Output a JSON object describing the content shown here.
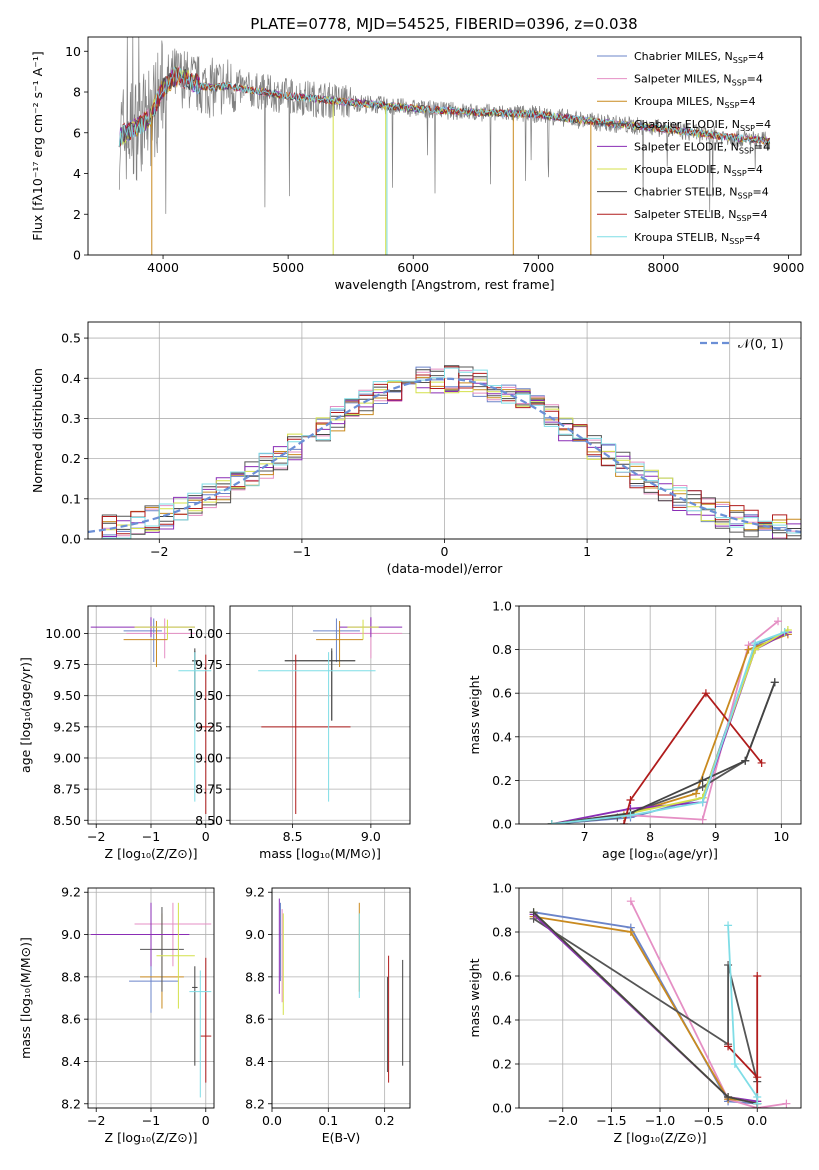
{
  "figure": {
    "title": "PLATE=0778, MJD=54525, FIBERID=0396, z=0.038"
  },
  "colors": {
    "series": [
      "#6b84c9",
      "#e58fc4",
      "#c98a1f",
      "#555555",
      "#8a2db5",
      "#d4e04a",
      "#444444",
      "#b01c1c",
      "#7fdde6"
    ]
  },
  "chart_data": [
    {
      "id": "spectrum",
      "type": "line",
      "title": "PLATE=0778, MJD=54525, FIBERID=0396, z=0.038",
      "xlabel": "wavelength [Angstrom, rest frame]",
      "ylabel": "Flux [fλ10⁻¹⁷ erg cm⁻² s⁻¹ A⁻¹]",
      "xlim": [
        3400,
        9100
      ],
      "ylim": [
        0,
        10.7
      ],
      "xticks": [
        4000,
        5000,
        6000,
        7000,
        8000,
        9000
      ],
      "yticks": [
        0,
        2,
        4,
        6,
        8,
        10
      ],
      "grid": false,
      "legend_position": "top-right",
      "data_range_x": [
        3650,
        8850
      ],
      "observed_color": "#808080",
      "continuum": {
        "x": [
          3650,
          3700,
          3800,
          3900,
          4000,
          4100,
          4200,
          4300,
          4400,
          4500,
          4700,
          5000,
          5500,
          6000,
          6500,
          7000,
          7500,
          8000,
          8500,
          8850
        ],
        "y": [
          5.8,
          6.0,
          6.3,
          6.8,
          8.2,
          8.8,
          8.6,
          8.3,
          8.2,
          8.3,
          8.1,
          7.8,
          7.5,
          7.2,
          7.0,
          6.9,
          6.5,
          6.2,
          5.8,
          5.6
        ]
      },
      "legend": [
        "Chabrier MILES, N",
        "Salpeter MILES, N",
        "Kroupa MILES, N",
        "Chabrier ELODIE, N",
        "Salpeter ELODIE, N",
        "Kroupa ELODIE, N",
        "Chabrier STELIB, N",
        "Salpeter STELIB, N",
        "Kroupa STELIB, N"
      ],
      "legend_sub": "SSP",
      "legend_suffix": "=4"
    },
    {
      "id": "residuals",
      "type": "histogram",
      "xlabel": "(data-model)/error",
      "ylabel": "Normed distribution",
      "xlim": [
        -2.5,
        2.5
      ],
      "ylim": [
        0,
        0.54
      ],
      "xticks": [
        -2,
        -1,
        0,
        1,
        2
      ],
      "yticks": [
        0.0,
        0.1,
        0.2,
        0.3,
        0.4,
        0.5
      ],
      "grid": true,
      "legend_position": "top-right",
      "legend": "𝒩(0, 1)",
      "bin_width": 0.1,
      "reference_curve": "gaussian(0,1)"
    },
    {
      "id": "age-vs-Z",
      "type": "errorbar",
      "xlabel": "Z [log₁₀(Z/Z⊙)]",
      "ylabel": "age  [log₁₀(age/yr)]",
      "xlim": [
        -2.15,
        0.15
      ],
      "ylim": [
        8.47,
        10.22
      ],
      "xticks": [
        -2,
        -1,
        0
      ],
      "yticks": [
        8.5,
        8.75,
        9.0,
        9.25,
        9.5,
        9.75,
        10.0
      ],
      "grid": true,
      "points": [
        {
          "x": -0.95,
          "y": 10.02,
          "xerr": [
            0.55,
            0.15
          ],
          "yerr": [
            0.25,
            0.1
          ]
        },
        {
          "x": -0.75,
          "y": 10.0,
          "xerr": [
            0.7,
            0.55
          ],
          "yerr": [
            0.2,
            0.12
          ]
        },
        {
          "x": -0.9,
          "y": 9.95,
          "xerr": [
            0.6,
            0.2
          ],
          "yerr": [
            0.22,
            0.15
          ]
        },
        {
          "x": -0.2,
          "y": 9.78,
          "xerr": [
            0.05,
            0.05
          ],
          "yerr": [
            0.48,
            0.08
          ]
        },
        {
          "x": -1.0,
          "y": 10.05,
          "xerr": [
            1.1,
            0.8
          ],
          "yerr": [
            0.08,
            0.08
          ]
        },
        {
          "x": -0.7,
          "y": 10.05,
          "xerr": [
            0.6,
            0.5
          ],
          "yerr": [
            0.1,
            0.06
          ]
        },
        {
          "x": -0.2,
          "y": 9.78,
          "xerr": [
            0.05,
            0.05
          ],
          "yerr": [
            0.48,
            0.1
          ]
        },
        {
          "x": 0.0,
          "y": 9.25,
          "xerr": [
            0.12,
            0.12
          ],
          "yerr": [
            0.7,
            0.58
          ]
        },
        {
          "x": -0.2,
          "y": 9.7,
          "xerr": [
            0.3,
            0.3
          ],
          "yerr": [
            1.05,
            0.15
          ]
        }
      ]
    },
    {
      "id": "age-vs-mass",
      "type": "errorbar",
      "xlabel": "mass [log₁₀(M/M⊙)]",
      "ylabel": "",
      "xlim": [
        8.1,
        9.25
      ],
      "ylim": [
        8.47,
        10.22
      ],
      "xticks": [
        8.5,
        9.0
      ],
      "yticks": [
        8.5,
        8.75,
        9.0,
        9.25,
        9.5,
        9.75,
        10.0
      ],
      "grid": true,
      "points": [
        {
          "x": 8.78,
          "y": 10.02,
          "xerr": [
            0.15,
            0.15
          ],
          "yerr": [
            0.25,
            0.1
          ]
        },
        {
          "x": 9.0,
          "y": 10.0,
          "xerr": [
            0.2,
            0.2
          ],
          "yerr": [
            0.2,
            0.12
          ]
        },
        {
          "x": 8.8,
          "y": 9.95,
          "xerr": [
            0.15,
            0.15
          ],
          "yerr": [
            0.22,
            0.15
          ]
        },
        {
          "x": 8.75,
          "y": 9.78,
          "xerr": [
            0.3,
            0.15
          ],
          "yerr": [
            0.48,
            0.08
          ]
        },
        {
          "x": 9.0,
          "y": 10.05,
          "xerr": [
            0.2,
            0.2
          ],
          "yerr": [
            0.08,
            0.08
          ]
        },
        {
          "x": 8.95,
          "y": 10.05,
          "xerr": [
            0.1,
            0.1
          ],
          "yerr": [
            0.1,
            0.06
          ]
        },
        {
          "x": 8.75,
          "y": 9.78,
          "xerr": [
            0.3,
            0.15
          ],
          "yerr": [
            0.48,
            0.1
          ]
        },
        {
          "x": 8.52,
          "y": 9.25,
          "xerr": [
            0.22,
            0.35
          ],
          "yerr": [
            0.7,
            0.58
          ]
        },
        {
          "x": 8.73,
          "y": 9.7,
          "xerr": [
            0.45,
            0.3
          ],
          "yerr": [
            1.05,
            0.15
          ]
        }
      ]
    },
    {
      "id": "weight-vs-age",
      "type": "line",
      "xlabel": "age  [log₁₀(age/yr)]",
      "ylabel": "mass weight",
      "xlim": [
        6.0,
        10.3
      ],
      "ylim": [
        0,
        1.0
      ],
      "xticks": [
        7,
        8,
        9,
        10
      ],
      "yticks": [
        0.0,
        0.2,
        0.4,
        0.6,
        0.8,
        1.0
      ],
      "grid": true,
      "series": [
        {
          "x": [
            6.5,
            7.7,
            8.8,
            9.6,
            10.05
          ],
          "y": [
            0.0,
            0.03,
            0.12,
            0.82,
            0.88
          ]
        },
        {
          "x": [
            6.5,
            7.7,
            8.8,
            9.5,
            9.95
          ],
          "y": [
            0.0,
            0.04,
            0.02,
            0.82,
            0.93
          ]
        },
        {
          "x": [
            6.5,
            7.6,
            8.7,
            9.5,
            10.1
          ],
          "y": [
            0.0,
            0.04,
            0.14,
            0.8,
            0.87
          ]
        },
        {
          "x": [
            6.5,
            7.5,
            8.8,
            9.45,
            9.9
          ],
          "y": [
            0.0,
            0.03,
            0.17,
            0.29,
            0.65
          ]
        },
        {
          "x": [
            6.5,
            7.7,
            8.8,
            9.6,
            10.1
          ],
          "y": [
            0.0,
            0.07,
            0.1,
            0.8,
            0.88
          ]
        },
        {
          "x": [
            6.5,
            7.7,
            8.8,
            9.6,
            10.1
          ],
          "y": [
            0.0,
            0.05,
            0.12,
            0.8,
            0.89
          ]
        },
        {
          "x": [
            6.5,
            7.7,
            8.8,
            9.45,
            9.9
          ],
          "y": [
            0.0,
            0.05,
            0.2,
            0.29,
            0.65
          ]
        },
        {
          "x": [
            7.6,
            7.7,
            8.85,
            9.7
          ],
          "y": [
            0.0,
            0.11,
            0.6,
            0.28
          ]
        },
        {
          "x": [
            6.5,
            7.7,
            8.8,
            9.6,
            10.05
          ],
          "y": [
            0.0,
            0.04,
            0.1,
            0.83,
            0.88
          ]
        }
      ]
    },
    {
      "id": "mass-vs-Z",
      "type": "errorbar",
      "xlabel": "Z [log₁₀(Z/Z⊙)]",
      "ylabel": "mass [log₁₀(M/M⊙)]",
      "xlim": [
        -2.15,
        0.15
      ],
      "ylim": [
        8.18,
        9.22
      ],
      "xticks": [
        -2,
        -1,
        0
      ],
      "yticks": [
        8.2,
        8.4,
        8.6,
        8.8,
        9.0,
        9.2
      ],
      "grid": true,
      "points": [
        {
          "x": -1.0,
          "y": 8.78,
          "xerr": [
            0.4,
            0.5
          ],
          "yerr": [
            0.15,
            0.3
          ]
        },
        {
          "x": -0.6,
          "y": 9.05,
          "xerr": [
            0.7,
            0.7
          ],
          "yerr": [
            0.2,
            0.1
          ]
        },
        {
          "x": -0.8,
          "y": 8.8,
          "xerr": [
            0.4,
            0.4
          ],
          "yerr": [
            0.15,
            0.3
          ]
        },
        {
          "x": -0.8,
          "y": 8.93,
          "xerr": [
            0.4,
            0.4
          ],
          "yerr": [
            0.2,
            0.2
          ]
        },
        {
          "x": -1.0,
          "y": 9.0,
          "xerr": [
            1.1,
            0.7
          ],
          "yerr": [
            0.15,
            0.15
          ]
        },
        {
          "x": -0.5,
          "y": 8.9,
          "xerr": [
            0.4,
            0.3
          ],
          "yerr": [
            0.25,
            0.25
          ]
        },
        {
          "x": -0.2,
          "y": 8.75,
          "xerr": [
            0.05,
            0.05
          ],
          "yerr": [
            0.37,
            0.1
          ]
        },
        {
          "x": 0.0,
          "y": 8.52,
          "xerr": [
            0.1,
            0.1
          ],
          "yerr": [
            0.22,
            0.37
          ]
        },
        {
          "x": -0.1,
          "y": 8.73,
          "xerr": [
            0.2,
            0.2
          ],
          "yerr": [
            0.5,
            0.1
          ]
        }
      ]
    },
    {
      "id": "mass-vs-ebv",
      "type": "errorbar",
      "xlabel": "E(B-V)",
      "ylabel": "",
      "xlim": [
        0.0,
        0.245
      ],
      "ylim": [
        8.18,
        9.22
      ],
      "xticks": [
        0.0,
        0.1,
        0.2
      ],
      "yticks": [
        8.2,
        8.4,
        8.6,
        8.8,
        9.0,
        9.2
      ],
      "grid": true,
      "points": [
        {
          "x": 0.015,
          "y": 9.0,
          "xerr": [
            0,
            0
          ],
          "yerr": [
            0.22,
            0.15
          ]
        },
        {
          "x": 0.018,
          "y": 8.9,
          "xerr": [
            0,
            0
          ],
          "yerr": [
            0.22,
            0.22
          ]
        },
        {
          "x": 0.155,
          "y": 8.95,
          "xerr": [
            0,
            0
          ],
          "yerr": [
            0.22,
            0.2
          ]
        },
        {
          "x": 0.205,
          "y": 8.6,
          "xerr": [
            0,
            0
          ],
          "yerr": [
            0.25,
            0.2
          ]
        },
        {
          "x": 0.013,
          "y": 9.02,
          "xerr": [
            0,
            0
          ],
          "yerr": [
            0.3,
            0.15
          ]
        },
        {
          "x": 0.02,
          "y": 8.9,
          "xerr": [
            0,
            0
          ],
          "yerr": [
            0.28,
            0.2
          ]
        },
        {
          "x": 0.232,
          "y": 8.63,
          "xerr": [
            0,
            0
          ],
          "yerr": [
            0.25,
            0.25
          ]
        },
        {
          "x": 0.207,
          "y": 8.6,
          "xerr": [
            0,
            0
          ],
          "yerr": [
            0.3,
            0.3
          ]
        },
        {
          "x": 0.155,
          "y": 8.9,
          "xerr": [
            0,
            0
          ],
          "yerr": [
            0.2,
            0.2
          ]
        }
      ]
    },
    {
      "id": "weight-vs-Z",
      "type": "line",
      "xlabel": "Z [log₁₀(Z/Z⊙)]",
      "ylabel": "mass weight",
      "xlim": [
        -2.45,
        0.45
      ],
      "ylim": [
        0,
        1.0
      ],
      "xticks": [
        -2.0,
        -1.5,
        -1.0,
        -0.5,
        0.0
      ],
      "yticks": [
        0.0,
        0.2,
        0.4,
        0.6,
        0.8,
        1.0
      ],
      "grid": true,
      "series": [
        {
          "x": [
            -2.3,
            -1.3,
            -0.3,
            0.0
          ],
          "y": [
            0.89,
            0.82,
            0.03,
            0.02
          ]
        },
        {
          "x": [
            -1.3,
            -0.3,
            0.0,
            0.3
          ],
          "y": [
            0.94,
            0.04,
            0.0,
            0.02
          ]
        },
        {
          "x": [
            -2.3,
            -1.3,
            -0.3,
            0.0
          ],
          "y": [
            0.87,
            0.8,
            0.04,
            0.03
          ]
        },
        {
          "x": [
            -2.3,
            -0.3,
            -0.3,
            0.0
          ],
          "y": [
            0.86,
            0.29,
            0.65,
            0.12
          ]
        },
        {
          "x": [
            -2.3,
            -0.3,
            0.0
          ],
          "y": [
            0.88,
            0.05,
            0.03
          ]
        },
        {
          "x": [
            -2.3,
            -0.3,
            0.0
          ],
          "y": [
            0.89,
            0.05,
            0.02
          ]
        },
        {
          "x": [
            -2.3,
            -0.3,
            0.0
          ],
          "y": [
            0.89,
            0.05,
            0.02
          ]
        },
        {
          "x": [
            -0.3,
            0.0,
            0.0,
            0.0
          ],
          "y": [
            0.28,
            0.14,
            0.6,
            0.0
          ]
        },
        {
          "x": [
            -0.3,
            -0.23,
            0.0,
            0.0
          ],
          "y": [
            0.83,
            0.2,
            0.05,
            0.02
          ]
        }
      ]
    }
  ]
}
